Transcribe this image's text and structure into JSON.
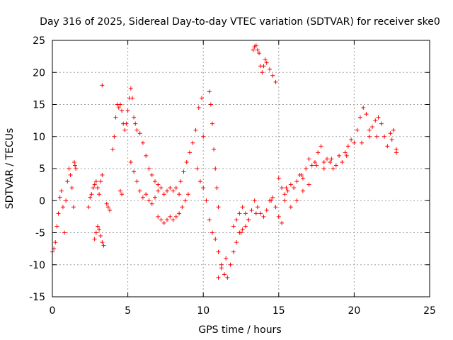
{
  "chart_data": {
    "type": "scatter",
    "title": "Day 316 of 2025, Sidereal Day-to-day VTEC variation (SDTVAR) for receiver ske0",
    "xlabel": "GPS time / hours",
    "ylabel": "SDTVAR / TECUs",
    "xlim": [
      0,
      25
    ],
    "ylim": [
      -15,
      25
    ],
    "xticks": [
      0,
      5,
      10,
      15,
      20,
      25
    ],
    "yticks": [
      -15,
      -10,
      -5,
      0,
      5,
      10,
      15,
      20,
      25
    ],
    "grid": true,
    "marker": "+",
    "series": [
      {
        "name": "SDTVAR",
        "color": "#ff0000",
        "segments": [
          {
            "x": [
              0.0,
              0.1,
              0.2,
              0.3,
              0.4,
              0.5,
              0.6,
              0.7,
              0.8,
              0.9,
              1.0,
              1.1,
              1.2,
              1.3,
              1.4
            ],
            "y": [
              -8.0,
              -7.5,
              -6.5,
              -4.0,
              -2.0,
              0.5,
              1.5,
              -1.0,
              -5.0,
              0.0,
              3.0,
              5.0,
              4.0,
              2.0,
              -1.0
            ]
          },
          {
            "x": [
              1.45,
              1.5,
              1.55
            ],
            "y": [
              6.0,
              5.5,
              5.0
            ]
          },
          {
            "x": [
              2.4,
              2.5,
              2.6,
              2.7,
              2.8,
              2.9,
              3.0,
              3.1,
              3.2,
              3.3
            ],
            "y": [
              -1.0,
              0.5,
              1.0,
              2.0,
              2.5,
              3.0,
              2.0,
              1.0,
              3.0,
              4.0
            ]
          },
          {
            "x": [
              2.8,
              2.9,
              3.0,
              3.1,
              3.2,
              3.3,
              3.4
            ],
            "y": [
              -6.0,
              -5.0,
              -4.0,
              -4.5,
              -5.5,
              -6.5,
              -7.0
            ]
          },
          {
            "x": [
              3.3
            ],
            "y": [
              18.0
            ]
          },
          {
            "x": [
              3.6,
              3.7,
              3.8
            ],
            "y": [
              -0.5,
              -1.0,
              -1.5
            ]
          },
          {
            "x": [
              4.0,
              4.1,
              4.2,
              4.3,
              4.4,
              4.5,
              4.6,
              4.7,
              4.8
            ],
            "y": [
              8.0,
              10.0,
              13.0,
              15.0,
              14.5,
              15.0,
              14.0,
              12.0,
              11.0
            ]
          },
          {
            "x": [
              4.5,
              4.6
            ],
            "y": [
              1.5,
              1.0
            ]
          },
          {
            "x": [
              4.9,
              5.0,
              5.1,
              5.2,
              5.3,
              5.4,
              5.5,
              5.6,
              5.8,
              6.0,
              6.2,
              6.4,
              6.6,
              6.8,
              7.0
            ],
            "y": [
              12.0,
              14.0,
              16.0,
              17.5,
              16.0,
              13.0,
              12.0,
              11.0,
              10.5,
              9.0,
              7.0,
              5.0,
              4.0,
              3.0,
              2.5
            ]
          },
          {
            "x": [
              5.2,
              5.4,
              5.6,
              5.8,
              6.0,
              6.2,
              6.4,
              6.6,
              6.8,
              7.0,
              7.2,
              7.4,
              7.6,
              7.8,
              8.0,
              8.2,
              8.4
            ],
            "y": [
              6.0,
              4.5,
              3.0,
              1.5,
              0.5,
              1.0,
              0.0,
              -0.5,
              0.5,
              1.5,
              2.0,
              1.0,
              1.5,
              2.0,
              1.5,
              2.0,
              1.0
            ]
          },
          {
            "x": [
              7.0,
              7.2,
              7.4,
              7.6,
              7.8,
              8.0,
              8.2,
              8.4,
              8.6,
              8.8,
              9.0
            ],
            "y": [
              -2.5,
              -3.0,
              -3.5,
              -3.0,
              -2.5,
              -3.0,
              -2.5,
              -2.0,
              -1.0,
              0.0,
              1.0
            ]
          },
          {
            "x": [
              8.5,
              8.7,
              8.9,
              9.1,
              9.3,
              9.5,
              9.7,
              9.9,
              10.0
            ],
            "y": [
              3.0,
              4.5,
              6.0,
              7.5,
              9.0,
              11.0,
              14.5,
              16.0,
              10.0
            ]
          },
          {
            "x": [
              9.6,
              9.8,
              10.0,
              10.2,
              10.4,
              10.6,
              10.8,
              11.0,
              11.2
            ],
            "y": [
              5.0,
              3.0,
              2.0,
              0.0,
              -3.0,
              -5.0,
              -6.0,
              -8.0,
              -10.0
            ]
          },
          {
            "x": [
              10.4,
              10.5,
              10.6,
              10.7,
              10.8,
              10.9,
              11.0
            ],
            "y": [
              17.0,
              15.0,
              12.0,
              8.0,
              5.0,
              2.0,
              -1.0
            ]
          },
          {
            "x": [
              11.2,
              11.4,
              11.6,
              11.8,
              12.0,
              12.2,
              12.4,
              12.6,
              12.8,
              13.0
            ],
            "y": [
              -10.5,
              -11.5,
              -12.0,
              -10.0,
              -8.0,
              -6.5,
              -5.0,
              -4.5,
              -4.0,
              -3.0
            ]
          },
          {
            "x": [
              12.0,
              12.2,
              12.4,
              12.6,
              12.8,
              13.0,
              13.2,
              13.4,
              13.6,
              13.8,
              14.0,
              14.2,
              14.4,
              14.6,
              14.8,
              15.0,
              15.2
            ],
            "y": [
              -4.0,
              -3.0,
              -2.0,
              -1.0,
              -2.0,
              -3.0,
              -1.5,
              0.0,
              -1.0,
              -2.0,
              -2.5,
              -1.5,
              0.0,
              0.5,
              -1.0,
              -2.5,
              -3.5
            ]
          },
          {
            "x": [
              13.3,
              13.4,
              13.5,
              13.6,
              13.7,
              13.8,
              13.9,
              14.0,
              14.1,
              14.2,
              14.4,
              14.6,
              14.8
            ],
            "y": [
              23.5,
              24.0,
              24.2,
              23.5,
              23.0,
              21.0,
              20.0,
              21.0,
              22.0,
              21.5,
              20.5,
              19.5,
              18.5
            ]
          },
          {
            "x": [
              15.0,
              15.2,
              15.4,
              15.6,
              15.8,
              16.0,
              16.2,
              16.4,
              16.6,
              16.8,
              17.0,
              17.2,
              17.4,
              17.6,
              17.8,
              18.0
            ],
            "y": [
              3.5,
              2.0,
              1.0,
              1.5,
              2.5,
              2.0,
              3.0,
              4.0,
              3.5,
              5.0,
              6.5,
              5.5,
              6.0,
              7.5,
              8.5,
              6.0
            ]
          },
          {
            "x": [
              15.4,
              15.8,
              16.2,
              16.6,
              17.0
            ],
            "y": [
              0.0,
              -1.0,
              0.0,
              1.5,
              2.5
            ]
          },
          {
            "x": [
              18.0,
              18.2,
              18.4,
              18.6,
              18.8,
              19.0,
              19.2,
              19.4,
              19.6,
              19.8,
              20.0,
              20.2,
              20.4,
              20.6,
              20.8,
              21.0
            ],
            "y": [
              5.0,
              6.5,
              6.0,
              5.0,
              5.5,
              7.0,
              6.0,
              7.5,
              8.5,
              9.5,
              9.0,
              11.0,
              13.0,
              14.5,
              13.5,
              11.0
            ]
          },
          {
            "x": [
              21.0,
              21.2,
              21.4,
              21.6,
              21.8,
              22.0,
              22.2,
              22.4,
              22.6,
              22.8
            ],
            "y": [
              10.0,
              11.5,
              12.5,
              13.0,
              12.0,
              10.0,
              8.5,
              10.5,
              11.0,
              8.0
            ]
          },
          {
            "x": [
              11.0,
              11.5,
              12.5,
              13.5,
              14.5,
              15.5,
              16.5,
              17.5,
              18.5,
              19.5,
              20.5,
              21.5,
              22.5,
              22.8
            ],
            "y": [
              -12.0,
              -9.0,
              -5.0,
              -2.0,
              0.0,
              2.0,
              4.0,
              5.5,
              6.5,
              7.0,
              9.0,
              10.0,
              9.5,
              7.5
            ]
          }
        ]
      }
    ]
  }
}
